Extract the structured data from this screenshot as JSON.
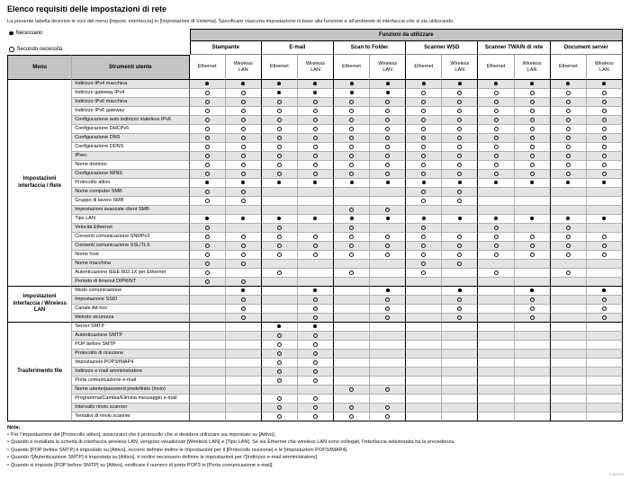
{
  "page": {
    "title": "Elenco requisiti delle impostazioni di rete",
    "subtitle": "La presente tabella descrive le voci del menu [Impost. interfaccia] in [Impostazioni di Sistema]. Specificare ciascuna impostazione in base alla funzione e all'ambiente di interfaccia che si sta utilizzando.",
    "footer_code": "F DH402"
  },
  "colors": {
    "header_bg": "#c4c4c4",
    "stripe_bg": "#e4e4e4",
    "border_dark": "#000000",
    "border_light": "#b0b0b0"
  },
  "legend": {
    "required": {
      "symbol": "filled-circle",
      "label": "Necessario"
    },
    "as_needed": {
      "symbol": "open-circle",
      "label": "Secondo necessità"
    }
  },
  "table": {
    "functions_header": "Funzioni da utilizzare",
    "menu_header": "Menu",
    "tools_header": "Strumenti utente",
    "functions": [
      "Stampante",
      "E-mail",
      "Scan to Folder",
      "Scanner WSD",
      "Scanner TWAIN di rete",
      "Document server"
    ],
    "interfaces": [
      "Ethernet",
      "Wireless LAN"
    ],
    "marks_key": {
      "F": "necessario (cerchio pieno)",
      "O": "secondo necessità (cerchio vuoto)",
      ".": "non applicabile"
    },
    "groups": [
      {
        "menu": "Impostazioni interfaccia / Rete",
        "rows": [
          {
            "label": "Indirizzo IPv4 macchina",
            "marks": "FFFFFFFFFFFF"
          },
          {
            "label": "Indirizzo gateway IPv4",
            "marks": "OOFFFFOOOOOO"
          },
          {
            "label": "Indirizzo IPv6 macchina",
            "marks": "OOOOOOOOOOOO"
          },
          {
            "label": "Indirizzo IPv6 gateway",
            "marks": "OOOOOOOOOOOO"
          },
          {
            "label": "Configurazione auto indirizzo stateless IPv6",
            "marks": "OOOOOOOOOOOO"
          },
          {
            "label": "Configurazione DHCPv6",
            "marks": "OOOOOOOOOOOO"
          },
          {
            "label": "Configurazione DNS",
            "marks": "OOOOOOOOOOOO"
          },
          {
            "label": "Configurazione DDNS",
            "marks": "OOOOOOOOOOOO"
          },
          {
            "label": "IPsec",
            "marks": "OOOOOOOOOOOO"
          },
          {
            "label": "Nome dominio",
            "marks": "OOOOOOOOOOOO"
          },
          {
            "label": "Configurazione WINS",
            "marks": "OOOOOOOOOOOO"
          },
          {
            "label": "Protocollo attivo",
            "marks": "FFFFFFFFFFFF"
          },
          {
            "label": "Nome computer SMB",
            "marks": "OO....OO...."
          },
          {
            "label": "Gruppo di lavoro SMB",
            "marks": "OO....OO...."
          },
          {
            "label": "Impostazioni avanzate client SMB",
            "marks": "....OO......"
          },
          {
            "label": "Tipo LAN",
            "marks": "FFFFFFFFFFFF"
          },
          {
            "label": "Velocità Ethernet",
            "marks": "O.O.O.O.O.O."
          },
          {
            "label": "Consenti comunicazione SNMPv3",
            "marks": "OOOOOOOOOOOO"
          },
          {
            "label": "Consenti comunicazione SSL/TLS",
            "marks": "OOOOOOOOOOOO"
          },
          {
            "label": "Nome host",
            "marks": "OOOOOOOOOOOO"
          },
          {
            "label": "Nome macchina",
            "marks": "OO....OO...."
          },
          {
            "label": "Autenticazione IEEE 802.1X per Ethernet",
            "marks": "O.O.O.O.O.O."
          },
          {
            "label": "Periodo di timeout DIPRINT",
            "marks": "OO.........."
          }
        ]
      },
      {
        "menu": "Impostazioni interfaccia / Wireless LAN",
        "rows": [
          {
            "label": "Modo comunicazione",
            "marks": ".F.F.F.F.F.F"
          },
          {
            "label": "Impostazione SSID",
            "marks": ".O.O.O.O.O.O"
          },
          {
            "label": "Canale Ad-hoc",
            "marks": ".O.O.O.O.O.O"
          },
          {
            "label": "Metodo sicurezza",
            "marks": ".O.O.O.O.O.O"
          }
        ]
      },
      {
        "menu": "Trasferimento file",
        "rows": [
          {
            "label": "Server SMTP",
            "marks": "..FF........"
          },
          {
            "label": "Autenticazione SMTP",
            "marks": "..OO........"
          },
          {
            "label": "POP before SMTP",
            "marks": "..OO........"
          },
          {
            "label": "Protocollo di ricezione",
            "marks": "..OO........"
          },
          {
            "label": "Impostazioni POP3/IMAP4",
            "marks": "..OO........"
          },
          {
            "label": "Indirizzo e-mail amministratore",
            "marks": "..OO........"
          },
          {
            "label": "Porta comunicazione e-mail",
            "marks": "..OO........"
          },
          {
            "label": "Nome utente/password predefinito (Invio)",
            "marks": "....OO......"
          },
          {
            "label": "Programma/Cambia/Elimina messaggio e-mail",
            "marks": "..OO........"
          },
          {
            "label": "Intervallo rinvio scanner",
            "marks": "..OOOO......"
          },
          {
            "label": "Tentativi di rinvio scanner",
            "marks": "..OOOO......"
          }
        ]
      }
    ]
  },
  "notes": {
    "heading": "Nota:",
    "items": [
      "Per l'impostazione del [Protocollo attivo], assicurarsi che il protocollo che si desidera utilizzare sia impostato su [Attivo].",
      "Quando è installata la scheda di interfaccia wireless LAN, vengono visualizzati [Wireless LAN] e [Tipo LAN]. Se sia Ethernet che wireless LAN sono collegati, l'interfaccia selezionata ha la precedenza.",
      "Quando [POP before SMTP] è impostato su [Attivo], occorre definire inoltre le impostazioni per il [Protocollo ricezione] e le [Impostazioni POP3/IMAP4].",
      "Quando l'[Autenticazione SMTP] è impostata su [Attivo], è inoltre necessario definire le impostazioni per l'[Indirizzo e-mail amministratore].",
      "Quando si imposta [POP before SMTP] su [Attivo], verificare il numero di porta POP3 in [Porta comunicazione e-mail]."
    ]
  }
}
